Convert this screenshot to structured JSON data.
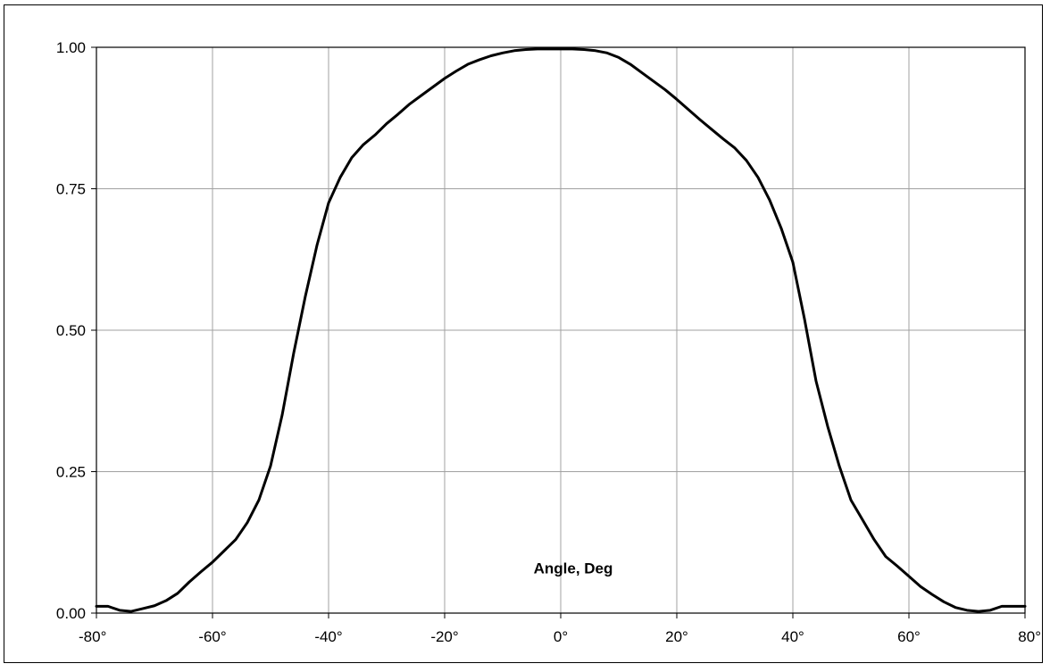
{
  "chart_data": {
    "type": "line",
    "title": "",
    "xlabel": "Angle, Deg",
    "ylabel": "",
    "xlim": [
      -80,
      80
    ],
    "ylim": [
      0,
      1
    ],
    "x_ticks": [
      -80,
      -60,
      -40,
      -20,
      0,
      20,
      40,
      60,
      80
    ],
    "x_tick_labels": [
      "-80°",
      "-60°",
      "-40°",
      "-20°",
      "0°",
      "20°",
      "40°",
      "60°",
      "80°"
    ],
    "y_ticks": [
      0,
      0.25,
      0.5,
      0.75,
      1
    ],
    "y_tick_labels": [
      "0.00",
      "0.25",
      "0.50",
      "0.75",
      "1.00"
    ],
    "grid": true,
    "legend": "none",
    "line_color": "#000000",
    "grid_color": "#a0a0a0",
    "series": [
      {
        "x": [
          -80,
          -78,
          -76,
          -74,
          -72,
          -70,
          -68,
          -66,
          -64,
          -62,
          -60,
          -58,
          -56,
          -54,
          -52,
          -50,
          -48,
          -46,
          -44,
          -42,
          -40,
          -38,
          -36,
          -34,
          -32,
          -30,
          -28,
          -26,
          -24,
          -22,
          -20,
          -18,
          -16,
          -14,
          -12,
          -10,
          -8,
          -6,
          -4,
          -2,
          0,
          2,
          4,
          6,
          8,
          10,
          12,
          14,
          16,
          18,
          20,
          22,
          24,
          26,
          28,
          30,
          32,
          34,
          36,
          38,
          40,
          42,
          44,
          46,
          48,
          50,
          52,
          54,
          56,
          58,
          60,
          62,
          64,
          66,
          68,
          70,
          72,
          74,
          76,
          78,
          80
        ],
        "y": [
          0.012,
          0.012,
          0.005,
          0.003,
          0.008,
          0.013,
          0.022,
          0.035,
          0.055,
          0.073,
          0.09,
          0.11,
          0.13,
          0.16,
          0.2,
          0.26,
          0.35,
          0.46,
          0.56,
          0.65,
          0.725,
          0.77,
          0.805,
          0.828,
          0.845,
          0.865,
          0.882,
          0.9,
          0.915,
          0.93,
          0.945,
          0.958,
          0.97,
          0.978,
          0.985,
          0.99,
          0.994,
          0.996,
          0.997,
          0.997,
          0.997,
          0.997,
          0.996,
          0.994,
          0.99,
          0.982,
          0.97,
          0.955,
          0.94,
          0.925,
          0.908,
          0.89,
          0.872,
          0.855,
          0.838,
          0.822,
          0.8,
          0.77,
          0.73,
          0.68,
          0.62,
          0.52,
          0.41,
          0.33,
          0.26,
          0.2,
          0.165,
          0.13,
          0.1,
          0.083,
          0.065,
          0.047,
          0.033,
          0.02,
          0.01,
          0.005,
          0.003,
          0.005,
          0.012,
          0.012,
          0.012
        ]
      }
    ]
  }
}
